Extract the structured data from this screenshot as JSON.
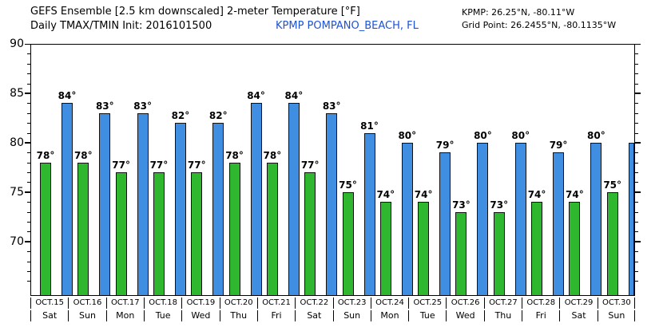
{
  "colors": {
    "station_text": "#1c52d4",
    "tmin_fill": "#2fb72f",
    "tmax_fill": "#3f8ee2",
    "bar_edge": "#111111"
  },
  "chart_data": {
    "type": "bar",
    "title": "GEFS Ensemble [2.5 km downscaled] 2-meter Temperature [°F]",
    "subtitle": "Daily TMAX/TMIN Init: 2016101500",
    "station": "KPMP POMPANO_BEACH, FL",
    "annotations": {
      "kpmp": "KPMP: 26.25°N, -80.11°W",
      "grid_point": "Grid Point: 26.2455°N, -80.1135°W"
    },
    "categories": [
      "OCT.15",
      "OCT.16",
      "OCT.17",
      "OCT.18",
      "OCT.19",
      "OCT.20",
      "OCT.21",
      "OCT.22",
      "OCT.23",
      "OCT.24",
      "OCT.25",
      "OCT.26",
      "OCT.27",
      "OCT.28",
      "OCT.29",
      "OCT.30"
    ],
    "day_labels": [
      "Sat",
      "Sun",
      "Mon",
      "Tue",
      "Wed",
      "Thu",
      "Fri",
      "Sat",
      "Sun",
      "Mon",
      "Tue",
      "Wed",
      "Thu",
      "Fri",
      "Sat",
      "Sun"
    ],
    "series": [
      {
        "name": "TMIN",
        "color": "#2fb72f",
        "values": [
          78,
          78,
          77,
          77,
          77,
          78,
          78,
          77,
          75,
          74,
          74,
          73,
          73,
          74,
          74,
          75
        ],
        "labels": [
          "78°",
          "78°",
          "77°",
          "77°",
          "77°",
          "78°",
          "78°",
          "77°",
          "75°",
          "74°",
          "74°",
          "73°",
          "73°",
          "74°",
          "74°",
          "75°"
        ]
      },
      {
        "name": "TMAX",
        "color": "#3f8ee2",
        "values": [
          84,
          83,
          83,
          82,
          82,
          84,
          84,
          83,
          81,
          80,
          79,
          80,
          80,
          79,
          80,
          80
        ],
        "labels": [
          "84°",
          "83°",
          "83°",
          "82°",
          "82°",
          "84°",
          "84°",
          "83°",
          "81°",
          "80°",
          "79°",
          "80°",
          "80°",
          "79°",
          "80°",
          ""
        ]
      }
    ],
    "ylim": [
      64.5,
      90
    ],
    "yticks": [
      90,
      85,
      80,
      75,
      70
    ],
    "grid": false,
    "legend": false
  }
}
